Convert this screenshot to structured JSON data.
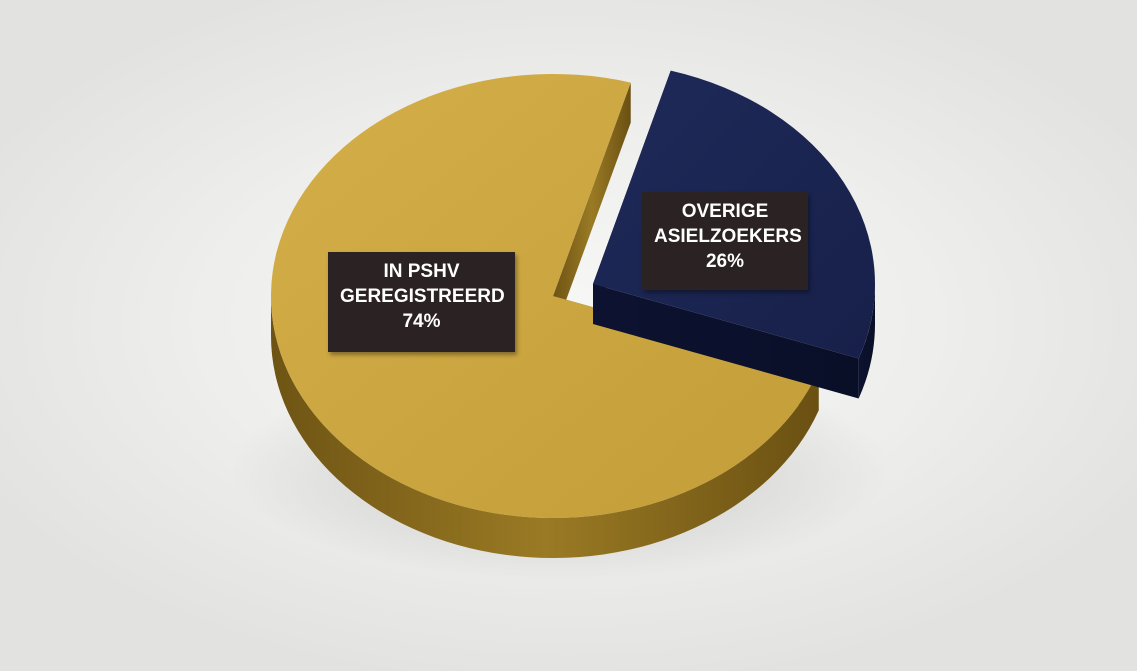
{
  "chart_data": {
    "type": "pie",
    "title": "",
    "slices": [
      {
        "line1": "IN PSHV",
        "line2": "GEREGISTREERD",
        "value": 74,
        "value_label": "74%",
        "color": "#c9a43f"
      },
      {
        "line1": "OVERIGE",
        "line2": "ASIELZOEKERS",
        "value": 26,
        "value_label": "26%",
        "color": "#1b2450"
      }
    ],
    "style": "3d-exploded",
    "legend": "none"
  }
}
